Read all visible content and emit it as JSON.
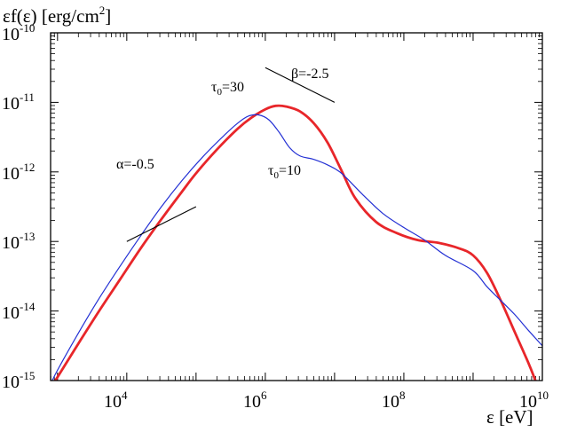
{
  "chart_data": {
    "type": "line",
    "title": "",
    "ylabel": "εf(ε) [erg/cm²]",
    "ylabel_main": "εf(ε) [erg/cm",
    "ylabel_sup": "2",
    "ylabel_tail": "]",
    "xlabel": "ε [eV]",
    "xscale": "log",
    "yscale": "log",
    "xlim_log10": [
      2.9,
      10
    ],
    "ylim_log10": [
      -15,
      -10
    ],
    "x_tick_labels": [
      {
        "exp": 4,
        "base": "10",
        "sup": "4"
      },
      {
        "exp": 6,
        "base": "10",
        "sup": "6"
      },
      {
        "exp": 8,
        "base": "10",
        "sup": "8"
      },
      {
        "exp": 10,
        "base": "10",
        "sup": "10"
      }
    ],
    "y_tick_labels": [
      {
        "exp": -10,
        "base": "10",
        "sup": "-10"
      },
      {
        "exp": -11,
        "base": "10",
        "sup": "-11"
      },
      {
        "exp": -12,
        "base": "10",
        "sup": "-12"
      },
      {
        "exp": -13,
        "base": "10",
        "sup": "-13"
      },
      {
        "exp": -14,
        "base": "10",
        "sup": "-14"
      },
      {
        "exp": -15,
        "base": "10",
        "sup": "-15"
      }
    ],
    "series": [
      {
        "name": "τ₀=30",
        "label_main": "τ",
        "label_sub": "0",
        "label_tail": "=30",
        "color": "#e8262a",
        "x_log10": [
          2.9,
          3.0,
          3.3,
          3.6,
          3.9,
          4.2,
          4.5,
          4.8,
          5.0,
          5.3,
          5.6,
          5.8,
          6.0,
          6.15,
          6.3,
          6.5,
          6.7,
          6.9,
          7.1,
          7.3,
          7.6,
          7.9,
          8.2,
          8.5,
          8.8,
          9.0,
          9.2,
          9.4,
          9.6,
          9.8,
          9.9,
          10.0
        ],
        "y_log10": [
          -15.1,
          -14.95,
          -14.47,
          -14.0,
          -13.55,
          -13.1,
          -12.68,
          -12.28,
          -12.02,
          -11.68,
          -11.38,
          -11.22,
          -11.1,
          -11.05,
          -11.06,
          -11.13,
          -11.3,
          -11.58,
          -11.98,
          -12.38,
          -12.72,
          -12.88,
          -12.98,
          -13.02,
          -13.1,
          -13.2,
          -13.45,
          -13.85,
          -14.3,
          -14.75,
          -15.0,
          -15.25
        ]
      },
      {
        "name": "τ₀=10",
        "label_main": "τ",
        "label_sub": "0",
        "label_tail": "=10",
        "color": "#2330d4",
        "x_log10": [
          2.9,
          3.0,
          3.3,
          3.6,
          3.9,
          4.2,
          4.5,
          4.8,
          5.1,
          5.4,
          5.6,
          5.75,
          5.9,
          6.05,
          6.2,
          6.35,
          6.5,
          6.7,
          6.9,
          7.1,
          7.4,
          7.7,
          8.0,
          8.3,
          8.6,
          9.0,
          9.2,
          9.4,
          9.6,
          9.8,
          10.0
        ],
        "y_log10": [
          -15.05,
          -14.85,
          -14.32,
          -13.82,
          -13.36,
          -12.92,
          -12.5,
          -12.12,
          -11.78,
          -11.48,
          -11.3,
          -11.2,
          -11.18,
          -11.25,
          -11.43,
          -11.65,
          -11.77,
          -11.82,
          -11.9,
          -12.02,
          -12.32,
          -12.6,
          -12.8,
          -12.98,
          -13.2,
          -13.42,
          -13.65,
          -13.85,
          -14.05,
          -14.28,
          -14.5
        ]
      }
    ],
    "annotations": [
      {
        "name": "alpha",
        "text": "α=-0.5",
        "line_x_log10": [
          4.0,
          5.0
        ],
        "line_y_log10": [
          -13.0,
          -12.5
        ]
      },
      {
        "name": "beta",
        "text": "β=-2.5",
        "line_x_log10": [
          6.0,
          7.0
        ],
        "line_y_log10": [
          -10.5,
          -11.0
        ]
      }
    ]
  }
}
